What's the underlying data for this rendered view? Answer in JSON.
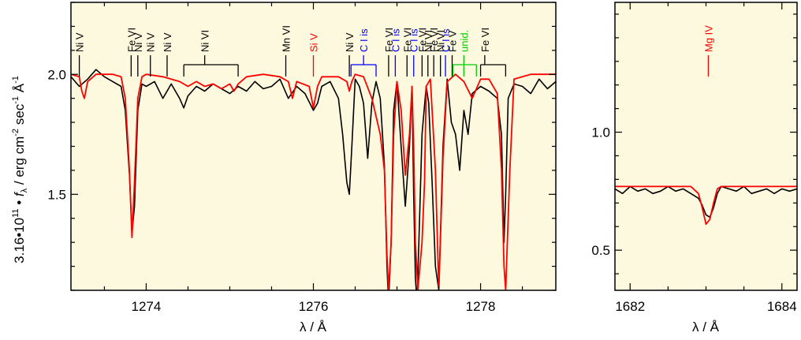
{
  "figure": {
    "ylabel": {
      "prefix": "3.16•10",
      "exp": "11",
      "mid": " • ",
      "f": "f",
      "fsub": "λ",
      "units1": " / erg cm",
      "units1exp": "-2",
      "units2": " sec",
      "units2exp": "-1",
      "units3": " Å",
      "units3exp": "-1"
    },
    "xlabel": "λ / Å"
  },
  "colors": {
    "background": "#fdf9de",
    "observation": "#000000",
    "model": "#ff0000",
    "ident_black": "#000000",
    "ident_red": "#ff0000",
    "ident_blue": "#0000ff",
    "ident_green": "#00cc00"
  },
  "chart_data": [
    {
      "type": "line",
      "panel": "left",
      "xlabel": "λ / Å",
      "xlim": [
        1273.1,
        1278.9
      ],
      "ylim": [
        1.1,
        2.3
      ],
      "xticks": [
        1274,
        1276,
        1278
      ],
      "xtick_labels": [
        "1274",
        "1276",
        "1278"
      ],
      "yticks": [
        1.5,
        2.0
      ],
      "ytick_labels": [
        "1.5",
        "2.0"
      ],
      "grid": false,
      "background_color": "#fdf9de",
      "series": [
        {
          "role": "observation",
          "color": "#000000",
          "x": [
            1273.1,
            1273.2,
            1273.3,
            1273.4,
            1273.5,
            1273.6,
            1273.7,
            1273.75,
            1273.8,
            1273.83,
            1273.86,
            1273.9,
            1273.95,
            1274.0,
            1274.1,
            1274.2,
            1274.3,
            1274.4,
            1274.45,
            1274.5,
            1274.6,
            1274.7,
            1274.8,
            1274.9,
            1275.0,
            1275.1,
            1275.2,
            1275.3,
            1275.4,
            1275.5,
            1275.6,
            1275.7,
            1275.8,
            1275.9,
            1276.0,
            1276.05,
            1276.1,
            1276.2,
            1276.3,
            1276.35,
            1276.4,
            1276.43,
            1276.46,
            1276.5,
            1276.55,
            1276.6,
            1276.65,
            1276.7,
            1276.75,
            1276.8,
            1276.85,
            1276.88,
            1276.9,
            1276.93,
            1276.96,
            1277.0,
            1277.05,
            1277.1,
            1277.15,
            1277.18,
            1277.2,
            1277.22,
            1277.24,
            1277.27,
            1277.3,
            1277.35,
            1277.38,
            1277.42,
            1277.46,
            1277.5,
            1277.55,
            1277.6,
            1277.65,
            1277.7,
            1277.75,
            1277.8,
            1277.85,
            1277.9,
            1278.0,
            1278.1,
            1278.2,
            1278.25,
            1278.28,
            1278.3,
            1278.33,
            1278.4,
            1278.5,
            1278.6,
            1278.7,
            1278.8,
            1278.9
          ],
          "y": [
            1.99,
            1.95,
            1.98,
            2.02,
            1.99,
            1.97,
            1.95,
            1.85,
            1.58,
            1.34,
            1.45,
            1.85,
            1.96,
            1.95,
            1.97,
            1.9,
            1.96,
            1.9,
            1.86,
            1.91,
            1.95,
            1.93,
            1.96,
            1.94,
            1.92,
            1.95,
            1.93,
            1.97,
            1.94,
            1.95,
            1.98,
            1.9,
            1.95,
            1.92,
            1.85,
            1.88,
            1.95,
            1.97,
            1.9,
            1.75,
            1.55,
            1.5,
            1.7,
            1.98,
            1.95,
            1.88,
            1.65,
            1.88,
            1.97,
            1.9,
            1.62,
            1.2,
            1.05,
            1.3,
            1.85,
            1.97,
            1.7,
            1.45,
            1.7,
            1.95,
            1.5,
            1.15,
            1.05,
            1.4,
            1.75,
            1.95,
            1.88,
            1.55,
            1.2,
            1.1,
            1.7,
            1.98,
            1.8,
            1.75,
            1.6,
            1.85,
            1.75,
            1.92,
            1.95,
            1.93,
            1.9,
            1.75,
            1.3,
            1.5,
            1.9,
            1.96,
            1.95,
            1.92,
            1.98,
            1.94,
            1.97
          ]
        },
        {
          "role": "model",
          "color": "#ff0000",
          "x": [
            1273.1,
            1273.2,
            1273.23,
            1273.26,
            1273.3,
            1273.4,
            1273.6,
            1273.7,
            1273.75,
            1273.8,
            1273.83,
            1273.86,
            1273.9,
            1273.95,
            1274.0,
            1274.2,
            1274.4,
            1274.5,
            1274.6,
            1274.7,
            1274.8,
            1274.9,
            1275.0,
            1275.05,
            1275.1,
            1275.2,
            1275.4,
            1275.6,
            1275.7,
            1275.75,
            1275.8,
            1275.95,
            1276.0,
            1276.05,
            1276.1,
            1276.3,
            1276.4,
            1276.43,
            1276.46,
            1276.5,
            1276.6,
            1276.7,
            1276.8,
            1276.85,
            1276.88,
            1276.9,
            1276.93,
            1276.96,
            1277.0,
            1277.05,
            1277.1,
            1277.15,
            1277.18,
            1277.2,
            1277.22,
            1277.25,
            1277.3,
            1277.33,
            1277.35,
            1277.4,
            1277.46,
            1277.5,
            1277.55,
            1277.6,
            1277.7,
            1277.8,
            1277.9,
            1278.0,
            1278.1,
            1278.2,
            1278.25,
            1278.28,
            1278.3,
            1278.35,
            1278.4,
            1278.6,
            1278.9
          ],
          "y": [
            2.0,
            1.99,
            1.93,
            1.9,
            1.97,
            2.0,
            2.0,
            1.99,
            1.9,
            1.6,
            1.32,
            1.55,
            1.9,
            1.99,
            2.0,
            1.99,
            1.97,
            1.95,
            1.97,
            1.95,
            1.96,
            1.94,
            1.96,
            1.93,
            1.96,
            1.99,
            2.0,
            1.99,
            1.97,
            1.9,
            1.97,
            1.95,
            1.86,
            1.95,
            1.99,
            1.99,
            1.97,
            1.93,
            1.97,
            2.0,
            1.99,
            1.9,
            1.75,
            1.6,
            1.25,
            1.1,
            1.3,
            1.75,
            1.97,
            1.85,
            1.58,
            1.75,
            1.95,
            1.7,
            1.3,
            1.1,
            1.3,
            1.55,
            1.95,
            1.98,
            1.6,
            1.1,
            1.65,
            1.97,
            2.0,
            1.97,
            1.9,
            1.98,
            1.98,
            1.92,
            1.6,
            1.2,
            1.1,
            1.6,
            1.98,
            2.0,
            2.0
          ]
        }
      ],
      "identifications": [
        {
          "label": "Ni V",
          "x": 1273.2,
          "color": "#000000"
        },
        {
          "label": "Fe VI",
          "x": 1273.82,
          "color": "#000000"
        },
        {
          "label": "Ni V",
          "x": 1273.9,
          "color": "#000000"
        },
        {
          "label": "Ni V",
          "x": 1274.05,
          "color": "#000000"
        },
        {
          "label": "Ni V",
          "x": 1274.25,
          "color": "#000000"
        },
        {
          "label": "Ni VI",
          "xs": [
            1274.45,
            1275.1
          ],
          "x": 1274.7,
          "color": "#000000"
        },
        {
          "label": "Mn VI",
          "x": 1275.67,
          "color": "#000000"
        },
        {
          "label": "Si V",
          "x": 1276.0,
          "color": "#ff0000"
        },
        {
          "label": "Ni V",
          "x": 1276.43,
          "color": "#000000"
        },
        {
          "label": "C I is",
          "xs": [
            1276.45,
            1276.75
          ],
          "x": 1276.6,
          "color": "#0000ff"
        },
        {
          "label": "Fe VI",
          "x": 1276.9,
          "color": "#000000"
        },
        {
          "label": "C I is",
          "x": 1276.98,
          "color": "#0000ff"
        },
        {
          "label": "Fe VI",
          "x": 1277.12,
          "color": "#000000"
        },
        {
          "label": "C I is",
          "x": 1277.2,
          "color": "#0000ff"
        },
        {
          "label": "Fe VI",
          "x": 1277.3,
          "color": "#000000"
        },
        {
          "label": "Ni VI",
          "x": 1277.37,
          "color": "#000000"
        },
        {
          "label": "Fe VI",
          "x": 1277.44,
          "color": "#000000"
        },
        {
          "label": "Ni VI",
          "x": 1277.52,
          "color": "#000000"
        },
        {
          "label": "C I is",
          "x": 1277.58,
          "color": "#0000ff"
        },
        {
          "label": "Fe V",
          "x": 1277.66,
          "color": "#000000"
        },
        {
          "label": "unid.",
          "xs": [
            1277.67,
            1277.8,
            1277.95
          ],
          "x": 1277.8,
          "color": "#00cc00"
        },
        {
          "label": "Fe VI",
          "xs": [
            1278.0,
            1278.3
          ],
          "x": 1278.05,
          "color": "#000000"
        }
      ]
    },
    {
      "type": "line",
      "panel": "right",
      "xlabel": "λ / Å",
      "xlim": [
        1681.8,
        1684.2
      ],
      "ylim": [
        0.33,
        1.55
      ],
      "xticks": [
        1682,
        1684
      ],
      "xtick_labels": [
        "1682",
        "1684"
      ],
      "yticks": [
        0.5,
        1.0
      ],
      "ytick_labels": [
        "0.5",
        "1.0"
      ],
      "grid": false,
      "background_color": "#fdf9de",
      "series": [
        {
          "role": "observation",
          "color": "#000000",
          "x": [
            1681.8,
            1681.9,
            1682.0,
            1682.1,
            1682.2,
            1682.3,
            1682.4,
            1682.5,
            1682.6,
            1682.7,
            1682.8,
            1682.9,
            1682.95,
            1683.0,
            1683.05,
            1683.1,
            1683.15,
            1683.2,
            1683.3,
            1683.4,
            1683.5,
            1683.6,
            1683.7,
            1683.8,
            1683.9,
            1684.0,
            1684.1,
            1684.2
          ],
          "y": [
            0.76,
            0.74,
            0.77,
            0.75,
            0.76,
            0.74,
            0.75,
            0.77,
            0.75,
            0.76,
            0.74,
            0.72,
            0.69,
            0.65,
            0.64,
            0.68,
            0.74,
            0.77,
            0.76,
            0.75,
            0.77,
            0.74,
            0.75,
            0.76,
            0.74,
            0.76,
            0.75,
            0.76
          ]
        },
        {
          "role": "model",
          "color": "#ff0000",
          "x": [
            1681.8,
            1682.0,
            1682.5,
            1682.8,
            1682.9,
            1682.95,
            1683.0,
            1683.05,
            1683.1,
            1683.15,
            1683.2,
            1683.3,
            1683.5,
            1684.0,
            1684.2
          ],
          "y": [
            0.77,
            0.77,
            0.77,
            0.77,
            0.74,
            0.68,
            0.61,
            0.63,
            0.7,
            0.76,
            0.77,
            0.77,
            0.77,
            0.77,
            0.77
          ]
        }
      ],
      "identifications": [
        {
          "label": "Mg IV",
          "x": 1683.03,
          "color": "#ff0000"
        }
      ]
    }
  ]
}
